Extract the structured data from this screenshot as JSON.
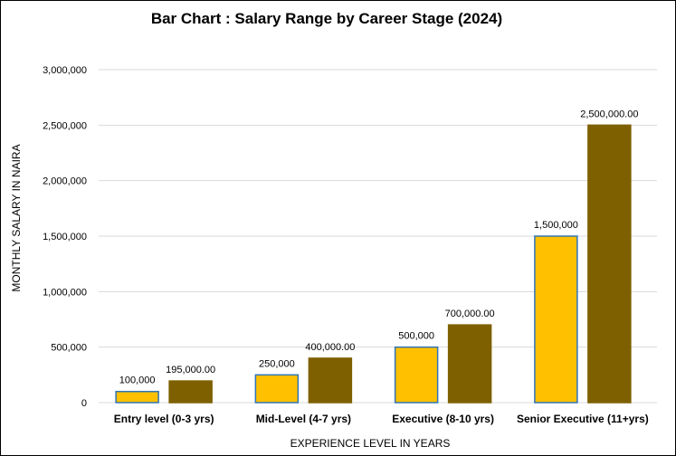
{
  "chart_data": {
    "type": "bar",
    "title": "Bar Chart : Salary Range by Career Stage (2024)",
    "xlabel": "EXPERIENCE LEVEL IN YEARS",
    "ylabel": "MONTHLY SALARY IN NAIRA",
    "ylim": [
      0,
      3000000
    ],
    "yticks": [
      0,
      500000,
      1000000,
      1500000,
      2000000,
      2500000,
      3000000
    ],
    "ytick_labels": [
      "0",
      "500,000",
      "1,000,000",
      "1,500,000",
      "2,000,000",
      "2,500,000",
      "3,000,000"
    ],
    "grid": true,
    "categories": [
      "Entry level (0-3 yrs)",
      "Mid-Level (4-7 yrs)",
      "Executive (8-10 yrs)",
      "Senior Executive (11+yrs)"
    ],
    "series": [
      {
        "values": [
          100000,
          250000,
          500000,
          1500000
        ],
        "labels": [
          "100,000",
          "250,000",
          "500,000",
          "1,500,000"
        ],
        "color": "#FFC000",
        "edge_color": "#2E75B6"
      },
      {
        "values": [
          195000,
          400000,
          700000,
          2500000
        ],
        "labels": [
          "195,000.00",
          "400,000.00",
          "700,000.00",
          "2,500,000.00"
        ],
        "color": "#7F6000",
        "edge_color": "#7F6000"
      }
    ]
  }
}
